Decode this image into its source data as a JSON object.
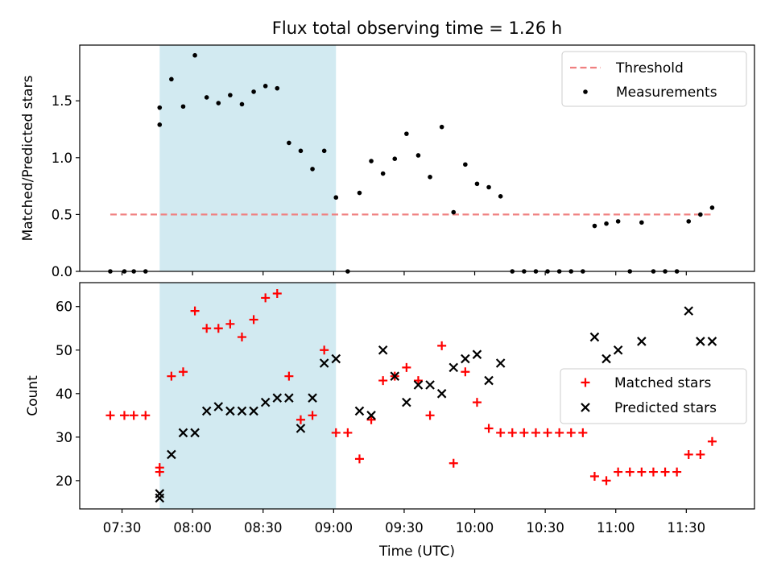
{
  "title": "Flux total observing time = 1.26 h",
  "chart_data": [
    {
      "type": "scatter",
      "panel": "top",
      "ylabel": "Matched/Predicted stars",
      "xlim": [
        "07:12",
        "11:59"
      ],
      "ylim": [
        0,
        1.99
      ],
      "yticks": [
        "0.0",
        "0.5",
        "1.0",
        "1.5"
      ],
      "highlight_span": [
        "07:46",
        "09:01"
      ],
      "threshold": {
        "name": "Threshold",
        "y": 0.5,
        "x": [
          "07:25",
          "11:41"
        ],
        "color": "#f08080"
      },
      "legend_position": "upper right",
      "series": [
        {
          "name": "Measurements",
          "color": "#000000",
          "points": [
            [
              "07:25",
              0.0
            ],
            [
              "07:31",
              0.0
            ],
            [
              "07:35",
              0.0
            ],
            [
              "07:40",
              0.0
            ],
            [
              "07:46",
              1.44
            ],
            [
              "07:46",
              1.29
            ],
            [
              "07:51",
              1.69
            ],
            [
              "07:56",
              1.45
            ],
            [
              "08:01",
              1.9
            ],
            [
              "08:06",
              1.53
            ],
            [
              "08:11",
              1.48
            ],
            [
              "08:16",
              1.55
            ],
            [
              "08:21",
              1.47
            ],
            [
              "08:26",
              1.58
            ],
            [
              "08:31",
              1.63
            ],
            [
              "08:36",
              1.61
            ],
            [
              "08:41",
              1.13
            ],
            [
              "08:46",
              1.06
            ],
            [
              "08:51",
              0.9
            ],
            [
              "08:56",
              1.06
            ],
            [
              "09:01",
              0.65
            ],
            [
              "09:06",
              0.0
            ],
            [
              "09:11",
              0.69
            ],
            [
              "09:16",
              0.97
            ],
            [
              "09:21",
              0.86
            ],
            [
              "09:26",
              0.99
            ],
            [
              "09:31",
              1.21
            ],
            [
              "09:36",
              1.02
            ],
            [
              "09:41",
              0.83
            ],
            [
              "09:46",
              1.27
            ],
            [
              "09:51",
              0.52
            ],
            [
              "09:56",
              0.94
            ],
            [
              "10:01",
              0.77
            ],
            [
              "10:06",
              0.74
            ],
            [
              "10:11",
              0.66
            ],
            [
              "10:16",
              0.0
            ],
            [
              "10:21",
              0.0
            ],
            [
              "10:26",
              0.0
            ],
            [
              "10:31",
              0.0
            ],
            [
              "10:36",
              0.0
            ],
            [
              "10:41",
              0.0
            ],
            [
              "10:46",
              0.0
            ],
            [
              "10:51",
              0.4
            ],
            [
              "10:56",
              0.42
            ],
            [
              "11:01",
              0.44
            ],
            [
              "11:06",
              0.0
            ],
            [
              "11:11",
              0.43
            ],
            [
              "11:16",
              0.0
            ],
            [
              "11:21",
              0.0
            ],
            [
              "11:26",
              0.0
            ],
            [
              "11:31",
              0.44
            ],
            [
              "11:36",
              0.5
            ],
            [
              "11:41",
              0.56
            ]
          ]
        }
      ]
    },
    {
      "type": "scatter",
      "panel": "bottom",
      "xlabel": "Time (UTC)",
      "ylabel": "Count",
      "xlim": [
        "07:12",
        "11:59"
      ],
      "ylim": [
        13.5,
        65.5
      ],
      "yticks": [
        "20",
        "30",
        "40",
        "50",
        "60"
      ],
      "xticks": [
        "07:30",
        "08:00",
        "08:30",
        "09:00",
        "09:30",
        "10:00",
        "10:30",
        "11:00",
        "11:30"
      ],
      "highlight_span": [
        "07:46",
        "09:01"
      ],
      "legend_position": "center right",
      "series": [
        {
          "name": "Matched stars",
          "marker": "plus",
          "color": "#ff0000",
          "points": [
            [
              "07:25",
              35
            ],
            [
              "07:31",
              35
            ],
            [
              "07:35",
              35
            ],
            [
              "07:40",
              35
            ],
            [
              "07:46",
              23
            ],
            [
              "07:46",
              22
            ],
            [
              "07:51",
              44
            ],
            [
              "07:56",
              45
            ],
            [
              "08:01",
              59
            ],
            [
              "08:06",
              55
            ],
            [
              "08:11",
              55
            ],
            [
              "08:16",
              56
            ],
            [
              "08:21",
              53
            ],
            [
              "08:26",
              57
            ],
            [
              "08:31",
              62
            ],
            [
              "08:36",
              63
            ],
            [
              "08:41",
              44
            ],
            [
              "08:46",
              34
            ],
            [
              "08:51",
              35
            ],
            [
              "08:56",
              50
            ],
            [
              "09:01",
              31
            ],
            [
              "09:06",
              31
            ],
            [
              "09:11",
              25
            ],
            [
              "09:16",
              34
            ],
            [
              "09:21",
              43
            ],
            [
              "09:26",
              44
            ],
            [
              "09:31",
              46
            ],
            [
              "09:36",
              43
            ],
            [
              "09:41",
              35
            ],
            [
              "09:46",
              51
            ],
            [
              "09:51",
              24
            ],
            [
              "09:56",
              45
            ],
            [
              "10:01",
              38
            ],
            [
              "10:06",
              32
            ],
            [
              "10:11",
              31
            ],
            [
              "10:16",
              31
            ],
            [
              "10:21",
              31
            ],
            [
              "10:26",
              31
            ],
            [
              "10:31",
              31
            ],
            [
              "10:36",
              31
            ],
            [
              "10:41",
              31
            ],
            [
              "10:46",
              31
            ],
            [
              "10:51",
              21
            ],
            [
              "10:56",
              20
            ],
            [
              "11:01",
              22
            ],
            [
              "11:06",
              22
            ],
            [
              "11:11",
              22
            ],
            [
              "11:16",
              22
            ],
            [
              "11:21",
              22
            ],
            [
              "11:26",
              22
            ],
            [
              "11:31",
              26
            ],
            [
              "11:36",
              26
            ],
            [
              "11:41",
              29
            ]
          ]
        },
        {
          "name": "Predicted stars",
          "marker": "x",
          "color": "#000000",
          "points": [
            [
              "07:46",
              17
            ],
            [
              "07:46",
              16
            ],
            [
              "07:51",
              26
            ],
            [
              "07:56",
              31
            ],
            [
              "08:01",
              31
            ],
            [
              "08:06",
              36
            ],
            [
              "08:11",
              37
            ],
            [
              "08:16",
              36
            ],
            [
              "08:21",
              36
            ],
            [
              "08:26",
              36
            ],
            [
              "08:31",
              38
            ],
            [
              "08:36",
              39
            ],
            [
              "08:41",
              39
            ],
            [
              "08:46",
              32
            ],
            [
              "08:51",
              39
            ],
            [
              "08:56",
              47
            ],
            [
              "09:01",
              48
            ],
            [
              "09:11",
              36
            ],
            [
              "09:16",
              35
            ],
            [
              "09:21",
              50
            ],
            [
              "09:26",
              44
            ],
            [
              "09:31",
              38
            ],
            [
              "09:36",
              42
            ],
            [
              "09:41",
              42
            ],
            [
              "09:46",
              40
            ],
            [
              "09:51",
              46
            ],
            [
              "09:56",
              48
            ],
            [
              "10:01",
              49
            ],
            [
              "10:06",
              43
            ],
            [
              "10:11",
              47
            ],
            [
              "10:51",
              53
            ],
            [
              "10:56",
              48
            ],
            [
              "11:01",
              50
            ],
            [
              "11:11",
              52
            ],
            [
              "11:31",
              59
            ],
            [
              "11:36",
              52
            ],
            [
              "11:41",
              52
            ]
          ]
        }
      ]
    }
  ],
  "colors": {
    "highlight": "#add8e6",
    "threshold": "#f08080",
    "matched": "#ff0000",
    "measurement": "#000000"
  }
}
